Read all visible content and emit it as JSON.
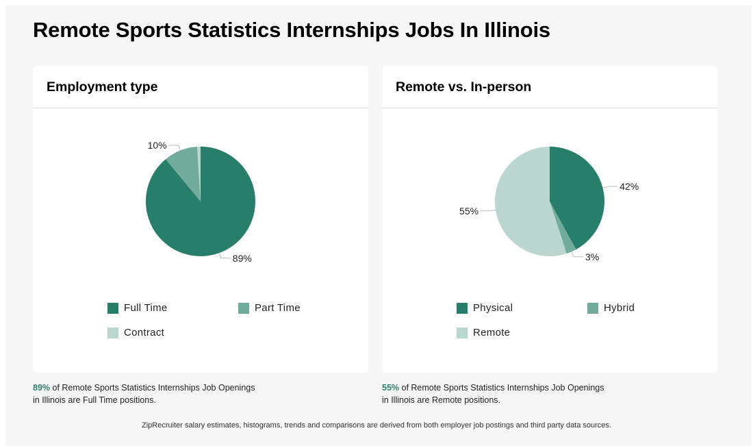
{
  "page": {
    "title": "Remote Sports Statistics Internships Jobs In Illinois",
    "footer": "ZipRecruiter salary estimates, histograms, trends and comparisons are derived from both employer job postings and third party data sources."
  },
  "colors": {
    "dark_green": "#267e6b",
    "mid_green": "#72ab9b",
    "light_green": "#bad6ce",
    "highlight": "#2f7f6a"
  },
  "chart_data": [
    {
      "type": "pie",
      "title": "Employment type",
      "slices": [
        {
          "name": "Full Time",
          "value": 89,
          "label": "89%",
          "color": "#267e6b"
        },
        {
          "name": "Part Time",
          "value": 10,
          "label": "10%",
          "color": "#72ab9b"
        },
        {
          "name": "Contract",
          "value": 1,
          "label": "",
          "color": "#bad6ce"
        }
      ],
      "legend": [
        "Full Time",
        "Part Time",
        "Contract"
      ],
      "legend_placement": "bottom",
      "caption": {
        "pct": "89%",
        "text_line1": " of Remote Sports Statistics Internships Job Openings",
        "text_line2": "in Illinois are Full Time positions."
      }
    },
    {
      "type": "pie",
      "title": "Remote vs. In-person",
      "slices": [
        {
          "name": "Physical",
          "value": 42,
          "label": "42%",
          "color": "#267e6b"
        },
        {
          "name": "Hybrid",
          "value": 3,
          "label": "3%",
          "color": "#72ab9b"
        },
        {
          "name": "Remote",
          "value": 55,
          "label": "55%",
          "color": "#bad6ce"
        }
      ],
      "legend": [
        "Physical",
        "Hybrid",
        "Remote"
      ],
      "legend_placement": "bottom",
      "caption": {
        "pct": "55%",
        "text_line1": " of Remote Sports Statistics Internships Job Openings",
        "text_line2": "in Illinois are Remote positions."
      }
    }
  ]
}
